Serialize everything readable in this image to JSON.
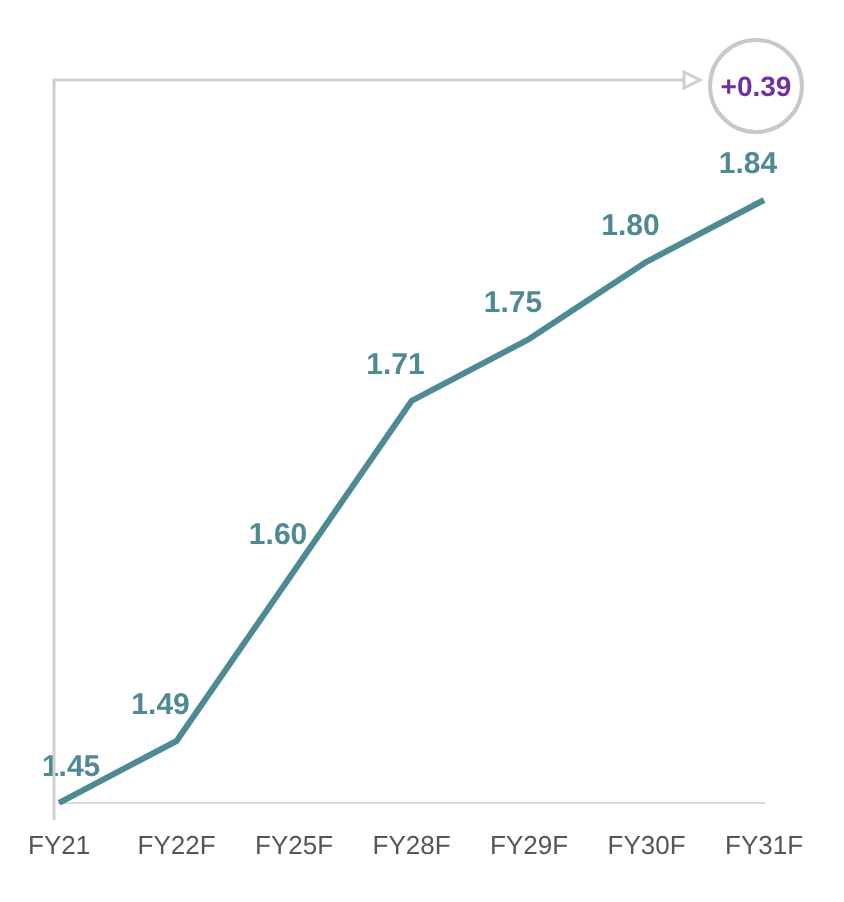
{
  "chart_data": {
    "type": "line",
    "categories": [
      "FY21",
      "FY22F",
      "FY25F",
      "FY28F",
      "FY29F",
      "FY30F",
      "FY31F"
    ],
    "series": [
      {
        "color": "#4e8a94",
        "values": [
          1.45,
          1.49,
          1.6,
          1.71,
          1.75,
          1.8,
          1.84
        ],
        "value_labels": [
          "1.45",
          "1.49",
          "1.60",
          "1.71",
          "1.75",
          "1.80",
          "1.84"
        ]
      }
    ],
    "grid": false,
    "legend": false,
    "marker": "none",
    "line_style": "solid",
    "annotations": [
      "+0.39"
    ]
  }
}
